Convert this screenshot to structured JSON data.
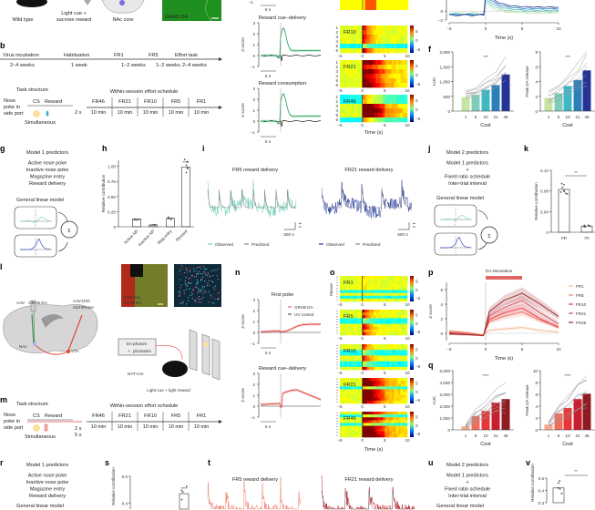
{
  "letters": {
    "b": "b",
    "g": "g",
    "h": "h",
    "i": "i",
    "j": "j",
    "k": "k",
    "l": "l",
    "m": "m",
    "n": "n",
    "o": "o",
    "p": "p",
    "q": "q",
    "r": "r",
    "s": "s",
    "t": "t",
    "u": "u",
    "v": "v",
    "f": "f"
  },
  "a": {
    "mouse_label": "Wild type",
    "cue_line1": "Light cue +",
    "cue_line2": "sucrose reward",
    "region": "NAc core",
    "image_label": "GRAB DA"
  },
  "b": {
    "stages": [
      {
        "name": "Virus incubation",
        "duration": "2–4 weeks"
      },
      {
        "name": "Habituation",
        "duration": "1 week"
      },
      {
        "name": "FR1",
        "duration": "1–2 weeks"
      },
      {
        "name": "FR5",
        "duration": "1–2 weeks"
      },
      {
        "name": "Effort task",
        "duration": "2–4 weeks"
      }
    ],
    "task": {
      "title": "Task structure",
      "nose_poke": [
        "Nose",
        "poke in",
        "side port"
      ],
      "cs": "CS",
      "reward": "Reward",
      "interval": "2 s",
      "simultaneous": "Simultaneous",
      "schedule_title": "Within-session effort schedule",
      "schedule": [
        "FR46",
        "FR21",
        "FR10",
        "FR5",
        "FR1"
      ],
      "block_duration": "10 min"
    }
  },
  "c": {
    "top_tick": "−1",
    "scale": "5 s",
    "titles": [
      "Reward cue–delivery",
      "Reward consumption"
    ],
    "ylabel": "Z-score",
    "yticks": [
      "3",
      "2",
      "1",
      "0",
      "−1"
    ]
  },
  "d": {
    "panels": [
      "FR10",
      "FR21",
      "FR46"
    ],
    "rows": [
      "1",
      "2",
      "3",
      "4",
      "5",
      "6"
    ],
    "xticks": [
      "−5",
      "0",
      "5",
      "10"
    ],
    "cbar_ticks": [
      "5",
      "0",
      "−5"
    ],
    "xlabel": "Time (s)"
  },
  "e": {
    "yticks": [
      "0",
      "−2"
    ],
    "xticks": [
      "−5",
      "0",
      "5",
      "10"
    ],
    "xlabel": "Time (s)"
  },
  "g": {
    "title": "Model 1 predictors",
    "predictors": [
      "Active nose poke",
      "Inactive nose poke",
      "Magazine entry",
      "Reward delivery"
    ],
    "model": "General linear model",
    "sum_symbol": "Σ"
  },
  "i": {
    "titles": [
      "FR5 reward delivery",
      "FR21 reward delivery"
    ],
    "scale_x": "500 s",
    "scale_y": "1 z",
    "legend": [
      "Observed",
      "Predicted"
    ]
  },
  "j": {
    "title": "Model 2 predictors",
    "line1": "Model 1 predictors",
    "plus": "+",
    "line2": "Fixed ratio schedule",
    "line3": "Inter-trial interval",
    "model": "General linear model",
    "sum_symbol": "Σ"
  },
  "l": {
    "virus_left_prefix": "AAV-",
    "virus_left_name": "GRAB DA",
    "virus_right_prefix": "AAV-DIO-",
    "virus_right_name": "rsChRmine",
    "nac": "NAc",
    "vta": "VTA",
    "img1_label1": "ChRmine",
    "img1_label2": "GRAB DA",
    "img2_label1": "ChRmine",
    "img2_label2": "TH",
    "img2_region": "IPN",
    "box_line1": "DA photom",
    "box_line2_prefix": "+ ",
    "box_line2": "photostim",
    "mouse_line": "DAT-Cre",
    "cue": "Light cue + light reward"
  },
  "m": {
    "title": "Task structure",
    "nose_poke": [
      "Nose",
      "poke in",
      "side port"
    ],
    "cs": "CS",
    "reward": "Reward",
    "interval1": "2 s",
    "interval2": "5 s",
    "simultaneous": "Simultaneous",
    "schedule_title": "Within-session effort schedule",
    "schedule": [
      "FR46",
      "FR21",
      "FR10",
      "FR5",
      "FR1"
    ],
    "block_duration": "10 min"
  },
  "n": {
    "titles": [
      "First poke",
      "Reward cue–delivery"
    ],
    "legend": [
      "GRAB DA",
      "UV control"
    ],
    "ylabel": "Z-score",
    "yticks": [
      "3",
      "2",
      "1",
      "0",
      "−1"
    ],
    "scale": "5 s"
  },
  "o": {
    "panels": [
      "FR1",
      "FR5",
      "FR10",
      "FR21",
      "FR46"
    ],
    "ylabel": "Mouse",
    "xticks": [
      "−5",
      "0",
      "5",
      "10"
    ],
    "cbar_ticks": [
      "5",
      "0",
      "−5"
    ],
    "xlabel": "Time (s)"
  },
  "r": {
    "title": "Model 1 predictors",
    "predictors": [
      "Active nose poke",
      "Inactive nose poke",
      "Magazine entry",
      "Reward delivery"
    ],
    "model": "General linear model"
  },
  "t": {
    "titles": [
      "FR5 reward delivery",
      "FR21 reward delivery"
    ]
  },
  "u": {
    "title": "Model 2 predictors",
    "line1": "Model 1 predictors",
    "plus": "+",
    "line2": "Fixed ratio schedule",
    "line3": "Inter-trial interval",
    "model": "General linear model"
  },
  "colors": {
    "green_trace": "#3aa86b",
    "teal": "#6fcfb8",
    "blue": "#2b3f9e",
    "red": "#e0453a",
    "gray": "#888888"
  },
  "chart_data": [
    {
      "id": "f_auc",
      "type": "bar",
      "categories": [
        "1",
        "5",
        "10",
        "21",
        "46"
      ],
      "values": [
        470,
        540,
        720,
        880,
        1240
      ],
      "xlabel": "Cost",
      "ylabel": "AUC",
      "ylim": [
        0,
        2000
      ],
      "yticks": [
        "0",
        "500",
        "1,000",
        "1,500",
        "2,000"
      ],
      "significance": "***",
      "colors": [
        "#c7e4a4",
        "#7fccba",
        "#41b6c4",
        "#2c7fb8",
        "#253494"
      ]
    },
    {
      "id": "f_peak",
      "type": "bar",
      "categories": [
        "1",
        "5",
        "10",
        "21",
        "46"
      ],
      "values": [
        1.8,
        2.4,
        3.4,
        4.2,
        5.5
      ],
      "xlabel": "Cost",
      "ylabel": "Peak DA release",
      "ylim": [
        0,
        8
      ],
      "yticks": [
        "0",
        "2",
        "4",
        "6",
        "8"
      ],
      "significance": "***",
      "colors": [
        "#c7e4a4",
        "#7fccba",
        "#41b6c4",
        "#2c7fb8",
        "#253494"
      ]
    },
    {
      "id": "h",
      "type": "bar",
      "categories": [
        "Active NP",
        "Inactive NP",
        "Mag entry",
        "Reward"
      ],
      "values": [
        0.13,
        0.03,
        0.14,
        0.99
      ],
      "ylabel": "Relative contribution",
      "ylim": [
        0,
        1.1
      ],
      "yticks": [
        "0",
        "0.25",
        "0.50",
        "0.75",
        "1.00"
      ],
      "significance": "****"
    },
    {
      "id": "k",
      "type": "bar",
      "categories": [
        "FR",
        "ITI"
      ],
      "values": [
        0.083,
        0.012
      ],
      "ylabel": "Relative contribution",
      "ylim": [
        0,
        0.12
      ],
      "yticks": [
        "0",
        "0.04",
        "0.08",
        "0.12"
      ],
      "significance": "**"
    },
    {
      "id": "q_auc",
      "type": "bar",
      "categories": [
        "1",
        "5",
        "10",
        "21",
        "46"
      ],
      "values": [
        300,
        1150,
        1600,
        2300,
        2600
      ],
      "xlabel": "Cost",
      "ylabel": "AUC",
      "ylim": [
        0,
        5000
      ],
      "yticks": [
        "0",
        "1,000",
        "2,000",
        "3,000",
        "4,000",
        "5,000"
      ],
      "significance": "****",
      "colors": [
        "#f7a98a",
        "#ef6f5e",
        "#e5363a",
        "#c61f2f",
        "#8e1b1f"
      ]
    },
    {
      "id": "q_peak",
      "type": "bar",
      "categories": [
        "1",
        "5",
        "10",
        "21",
        "46"
      ],
      "values": [
        0.9,
        2.8,
        3.7,
        5.2,
        6.1
      ],
      "xlabel": "Cost",
      "ylabel": "Peak DA release",
      "ylim": [
        0,
        10
      ],
      "yticks": [
        "0",
        "2",
        "4",
        "6",
        "8",
        "10"
      ],
      "significance": "****",
      "colors": [
        "#f7a98a",
        "#ef6f5e",
        "#e5363a",
        "#c61f2f",
        "#8e1b1f"
      ]
    },
    {
      "id": "p",
      "type": "line",
      "x": [
        -5,
        -2.5,
        -0.3,
        0.5,
        2.5,
        5,
        7.5,
        10
      ],
      "xlabel": "Time (s)",
      "ylabel": "Z-score",
      "xlim": [
        -5,
        10
      ],
      "ylim": [
        -1,
        7
      ],
      "yticks": [
        "0",
        "2",
        "4",
        "6"
      ],
      "xticks": [
        "−5",
        "0",
        "5",
        "10"
      ],
      "annotation": "DA stimulation",
      "series": [
        {
          "name": "FR1",
          "color": "#f9b98f",
          "values": [
            0.2,
            0.1,
            -0.2,
            0.4,
            0.6,
            0.8,
            0.4,
            0.2
          ]
        },
        {
          "name": "FR5",
          "color": "#f07f6e",
          "values": [
            0.3,
            0.1,
            -0.3,
            1.6,
            2.3,
            2.9,
            1.8,
            0.9
          ]
        },
        {
          "name": "FR10",
          "color": "#e5363a",
          "values": [
            0.1,
            -0.1,
            -0.3,
            1.9,
            2.8,
            3.5,
            2.0,
            0.8
          ]
        },
        {
          "name": "FR21",
          "color": "#cc4a5a",
          "values": [
            0.0,
            -0.1,
            -0.3,
            2.4,
            3.5,
            4.5,
            2.8,
            1.3
          ]
        },
        {
          "name": "FR46",
          "color": "#9c1f24",
          "values": [
            -0.1,
            -0.2,
            -0.3,
            3.0,
            4.5,
            5.5,
            4.0,
            2.3
          ]
        }
      ]
    },
    {
      "id": "s",
      "type": "bar",
      "categories": [
        "Reward"
      ],
      "values": [
        0.47
      ],
      "ylabel": "Relative contribution",
      "ylim": [
        0,
        0.6
      ],
      "yticks": [
        "0.4",
        "0.6"
      ],
      "significance": "****"
    },
    {
      "id": "v",
      "type": "bar",
      "categories": [
        "FR"
      ],
      "values": [
        0.42
      ],
      "ylabel": "Relative contribution",
      "ylim": [
        0.3,
        0.5
      ],
      "yticks": [
        "0.3",
        "0.4",
        "0.5"
      ],
      "significance": "**"
    }
  ]
}
